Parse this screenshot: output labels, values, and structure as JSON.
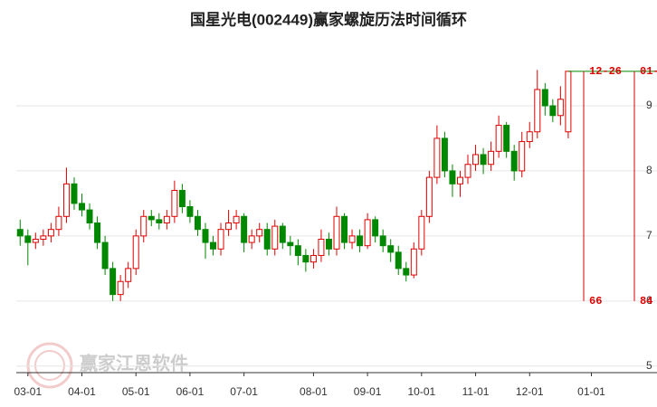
{
  "chart_data": {
    "type": "candlestick",
    "title": "国星光电(002449)赢家螺旋历法时间循环",
    "watermark": "赢家江恩软件",
    "categories": [
      null,
      "03-01",
      null,
      null,
      null,
      null,
      null,
      null,
      "04-01",
      null,
      null,
      null,
      null,
      null,
      null,
      "05-01",
      null,
      null,
      null,
      null,
      null,
      null,
      "06-01",
      null,
      null,
      null,
      null,
      null,
      null,
      "07-01",
      null,
      null,
      null,
      null,
      null,
      null,
      null,
      null,
      "08-01",
      null,
      null,
      null,
      null,
      null,
      null,
      "09-01",
      null,
      null,
      null,
      null,
      null,
      null,
      "10-01",
      null,
      null,
      null,
      null,
      null,
      null,
      "11-01",
      null,
      null,
      null,
      null,
      null,
      null,
      "12-01",
      null,
      null,
      null,
      null,
      null,
      null,
      null,
      "01-01",
      null,
      null,
      null,
      null,
      null,
      null,
      null,
      null
    ],
    "open": [
      7.1,
      7.0,
      6.9,
      6.95,
      7.0,
      7.1,
      7.3,
      7.8,
      7.5,
      7.4,
      7.2,
      6.9,
      6.5,
      6.1,
      6.3,
      6.5,
      7.0,
      7.3,
      7.25,
      7.2,
      7.3,
      7.7,
      7.45,
      7.3,
      7.1,
      6.9,
      6.8,
      7.1,
      7.2,
      7.3,
      6.9,
      7.0,
      7.1,
      6.8,
      7.15,
      6.9,
      6.85,
      6.7,
      6.6,
      6.7,
      6.95,
      6.8,
      7.3,
      6.9,
      7.0,
      6.85,
      7.25,
      7.0,
      6.85,
      6.75,
      6.5,
      6.4,
      6.8,
      7.3,
      7.9,
      8.5,
      8.0,
      7.8,
      7.9,
      8.1,
      8.25,
      8.1,
      8.3,
      8.7,
      8.3,
      8.0,
      8.45,
      8.6,
      9.25,
      9.0,
      8.85,
      8.6,
      null,
      null,
      null,
      null,
      null,
      null,
      null,
      null,
      null,
      null,
      null
    ],
    "high": [
      7.25,
      7.1,
      7.05,
      7.1,
      7.2,
      7.45,
      8.05,
      7.9,
      7.65,
      7.5,
      7.3,
      7.0,
      6.6,
      6.4,
      6.6,
      7.1,
      7.4,
      7.4,
      7.35,
      7.4,
      7.85,
      7.8,
      7.55,
      7.4,
      7.2,
      7.0,
      7.2,
      7.4,
      7.4,
      7.35,
      7.1,
      7.2,
      7.2,
      7.25,
      7.2,
      7.0,
      6.95,
      6.8,
      6.8,
      7.1,
      7.05,
      7.45,
      7.35,
      7.1,
      7.1,
      7.35,
      7.3,
      7.1,
      6.95,
      6.85,
      6.6,
      6.9,
      7.4,
      8.0,
      8.7,
      8.6,
      8.1,
      8.0,
      8.25,
      8.4,
      8.35,
      8.45,
      8.85,
      8.75,
      8.4,
      8.6,
      8.75,
      9.55,
      9.35,
      9.1,
      9.3,
      9.53,
      null,
      null,
      null,
      null,
      null,
      null,
      null,
      null,
      null,
      null,
      null
    ],
    "low": [
      6.85,
      6.55,
      6.8,
      6.85,
      6.9,
      7.0,
      7.2,
      7.4,
      7.3,
      7.1,
      6.8,
      6.4,
      6.0,
      6.0,
      6.2,
      6.4,
      6.9,
      7.15,
      7.1,
      7.1,
      7.2,
      7.35,
      7.2,
      7.0,
      6.65,
      6.7,
      6.7,
      7.0,
      7.1,
      6.75,
      6.8,
      6.9,
      6.7,
      6.7,
      6.8,
      6.7,
      6.55,
      6.45,
      6.5,
      6.6,
      6.7,
      6.7,
      6.8,
      6.8,
      6.75,
      6.8,
      6.9,
      6.75,
      6.6,
      6.4,
      6.3,
      6.35,
      6.7,
      7.2,
      7.8,
      7.9,
      7.6,
      7.6,
      7.8,
      8.0,
      7.95,
      8.0,
      8.2,
      8.2,
      7.85,
      7.9,
      8.35,
      8.5,
      8.85,
      8.75,
      8.7,
      8.5,
      null,
      null,
      null,
      null,
      null,
      null,
      null,
      null,
      null,
      null,
      null
    ],
    "close": [
      7.0,
      6.9,
      6.95,
      7.0,
      7.1,
      7.3,
      7.8,
      7.5,
      7.4,
      7.2,
      6.9,
      6.5,
      6.1,
      6.3,
      6.5,
      7.0,
      7.3,
      7.25,
      7.2,
      7.3,
      7.7,
      7.45,
      7.3,
      7.1,
      6.9,
      6.8,
      7.1,
      7.2,
      7.3,
      6.9,
      7.0,
      7.1,
      6.8,
      7.15,
      6.9,
      6.85,
      6.7,
      6.6,
      6.7,
      6.95,
      6.8,
      7.3,
      6.9,
      7.0,
      6.85,
      7.25,
      7.0,
      6.85,
      6.75,
      6.5,
      6.4,
      6.8,
      7.3,
      7.9,
      8.5,
      8.0,
      7.8,
      7.9,
      8.1,
      8.25,
      8.1,
      8.3,
      8.7,
      8.3,
      8.0,
      8.45,
      8.6,
      9.25,
      9.0,
      8.85,
      9.1,
      9.53,
      null,
      null,
      null,
      null,
      null,
      null,
      null,
      null,
      null,
      null,
      null
    ],
    "up_color": "#e00000",
    "down_color": "#008800",
    "ylim": [
      4.9,
      10.0
    ],
    "yticks": [
      5,
      6,
      7,
      8,
      9
    ],
    "grid": true,
    "cycle_lines": [
      {
        "date": "12-26",
        "days": 66
      },
      {
        "date": "01-",
        "days": 84
      }
    ]
  }
}
